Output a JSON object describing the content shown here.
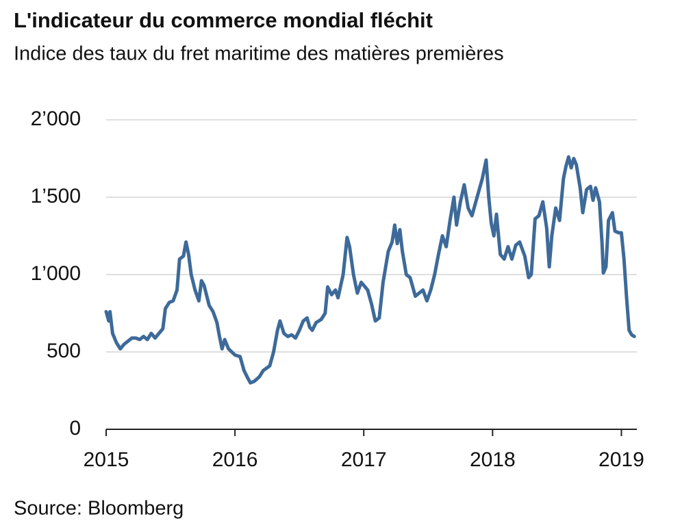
{
  "chart_data": {
    "type": "line",
    "title": "L'indicateur du commerce mondial fléchit",
    "subtitle": "Indice des taux du fret maritime des matières premières",
    "source": "Source: Bloomberg",
    "x": [
      2015.0,
      2015.02,
      2015.03,
      2015.05,
      2015.08,
      2015.11,
      2015.14,
      2015.17,
      2015.2,
      2015.23,
      2015.26,
      2015.29,
      2015.32,
      2015.35,
      2015.38,
      2015.41,
      2015.44,
      2015.46,
      2015.49,
      2015.52,
      2015.55,
      2015.57,
      2015.6,
      2015.62,
      2015.64,
      2015.66,
      2015.69,
      2015.72,
      2015.74,
      2015.76,
      2015.8,
      2015.83,
      2015.86,
      2015.88,
      2015.9,
      2015.92,
      2015.95,
      2016.0,
      2016.04,
      2016.07,
      2016.1,
      2016.12,
      2016.15,
      2016.19,
      2016.22,
      2016.27,
      2016.3,
      2016.33,
      2016.35,
      2016.38,
      2016.41,
      2016.44,
      2016.47,
      2016.5,
      2016.53,
      2016.56,
      2016.58,
      2016.6,
      2016.63,
      2016.67,
      2016.7,
      2016.72,
      2016.75,
      2016.78,
      2016.8,
      2016.84,
      2016.87,
      2016.89,
      2016.92,
      2016.95,
      2016.98,
      2017.03,
      2017.06,
      2017.09,
      2017.12,
      2017.15,
      2017.19,
      2017.22,
      2017.24,
      2017.26,
      2017.28,
      2017.3,
      2017.33,
      2017.36,
      2017.4,
      2017.43,
      2017.46,
      2017.49,
      2017.52,
      2017.55,
      2017.58,
      2017.61,
      2017.64,
      2017.67,
      2017.7,
      2017.72,
      2017.75,
      2017.78,
      2017.81,
      2017.84,
      2017.88,
      2017.92,
      2017.95,
      2017.97,
      2017.99,
      2018.01,
      2018.03,
      2018.06,
      2018.09,
      2018.12,
      2018.15,
      2018.18,
      2018.21,
      2018.25,
      2018.28,
      2018.3,
      2018.33,
      2018.36,
      2018.39,
      2018.42,
      2018.44,
      2018.46,
      2018.49,
      2018.52,
      2018.55,
      2018.57,
      2018.59,
      2018.61,
      2018.63,
      2018.65,
      2018.68,
      2018.7,
      2018.73,
      2018.76,
      2018.78,
      2018.8,
      2018.83,
      2018.85,
      2018.86,
      2018.88,
      2018.9,
      2018.93,
      2018.95,
      2018.98,
      2019.0,
      2019.02,
      2019.04,
      2019.06,
      2019.08,
      2019.1
    ],
    "series": [
      {
        "color": "#3d6a99",
        "values": [
          760,
          700,
          760,
          620,
          560,
          520,
          550,
          570,
          590,
          590,
          580,
          600,
          580,
          620,
          590,
          620,
          650,
          780,
          820,
          830,
          900,
          1100,
          1120,
          1210,
          1130,
          1000,
          900,
          830,
          960,
          930,
          800,
          760,
          690,
          600,
          520,
          580,
          520,
          480,
          470,
          380,
          330,
          300,
          310,
          340,
          380,
          410,
          500,
          640,
          700,
          620,
          600,
          610,
          590,
          640,
          700,
          720,
          660,
          640,
          690,
          710,
          750,
          920,
          870,
          900,
          850,
          1000,
          1240,
          1180,
          1000,
          880,
          950,
          900,
          810,
          700,
          720,
          950,
          1150,
          1210,
          1320,
          1200,
          1290,
          1150,
          1000,
          980,
          860,
          880,
          900,
          830,
          900,
          1000,
          1130,
          1250,
          1180,
          1350,
          1500,
          1320,
          1470,
          1580,
          1430,
          1380,
          1500,
          1620,
          1740,
          1500,
          1330,
          1250,
          1390,
          1130,
          1100,
          1180,
          1100,
          1190,
          1210,
          1120,
          980,
          1000,
          1360,
          1380,
          1470,
          1300,
          1050,
          1250,
          1430,
          1350,
          1620,
          1700,
          1760,
          1690,
          1750,
          1710,
          1560,
          1400,
          1550,
          1570,
          1480,
          1560,
          1470,
          1200,
          1010,
          1050,
          1350,
          1400,
          1280,
          1270,
          1270,
          1100,
          850,
          640,
          610,
          600
        ]
      }
    ],
    "xlim": [
      2015,
      2019.12
    ],
    "xticks": [
      2015,
      2016,
      2017,
      2018,
      2019
    ],
    "ylim": [
      0,
      2000
    ],
    "yticks": [
      0,
      500,
      {
        "value": 1000,
        "label": "1’000"
      },
      {
        "value": 1500,
        "label": "1’500"
      },
      {
        "value": 2000,
        "label": "2’000"
      }
    ],
    "grid": true
  }
}
